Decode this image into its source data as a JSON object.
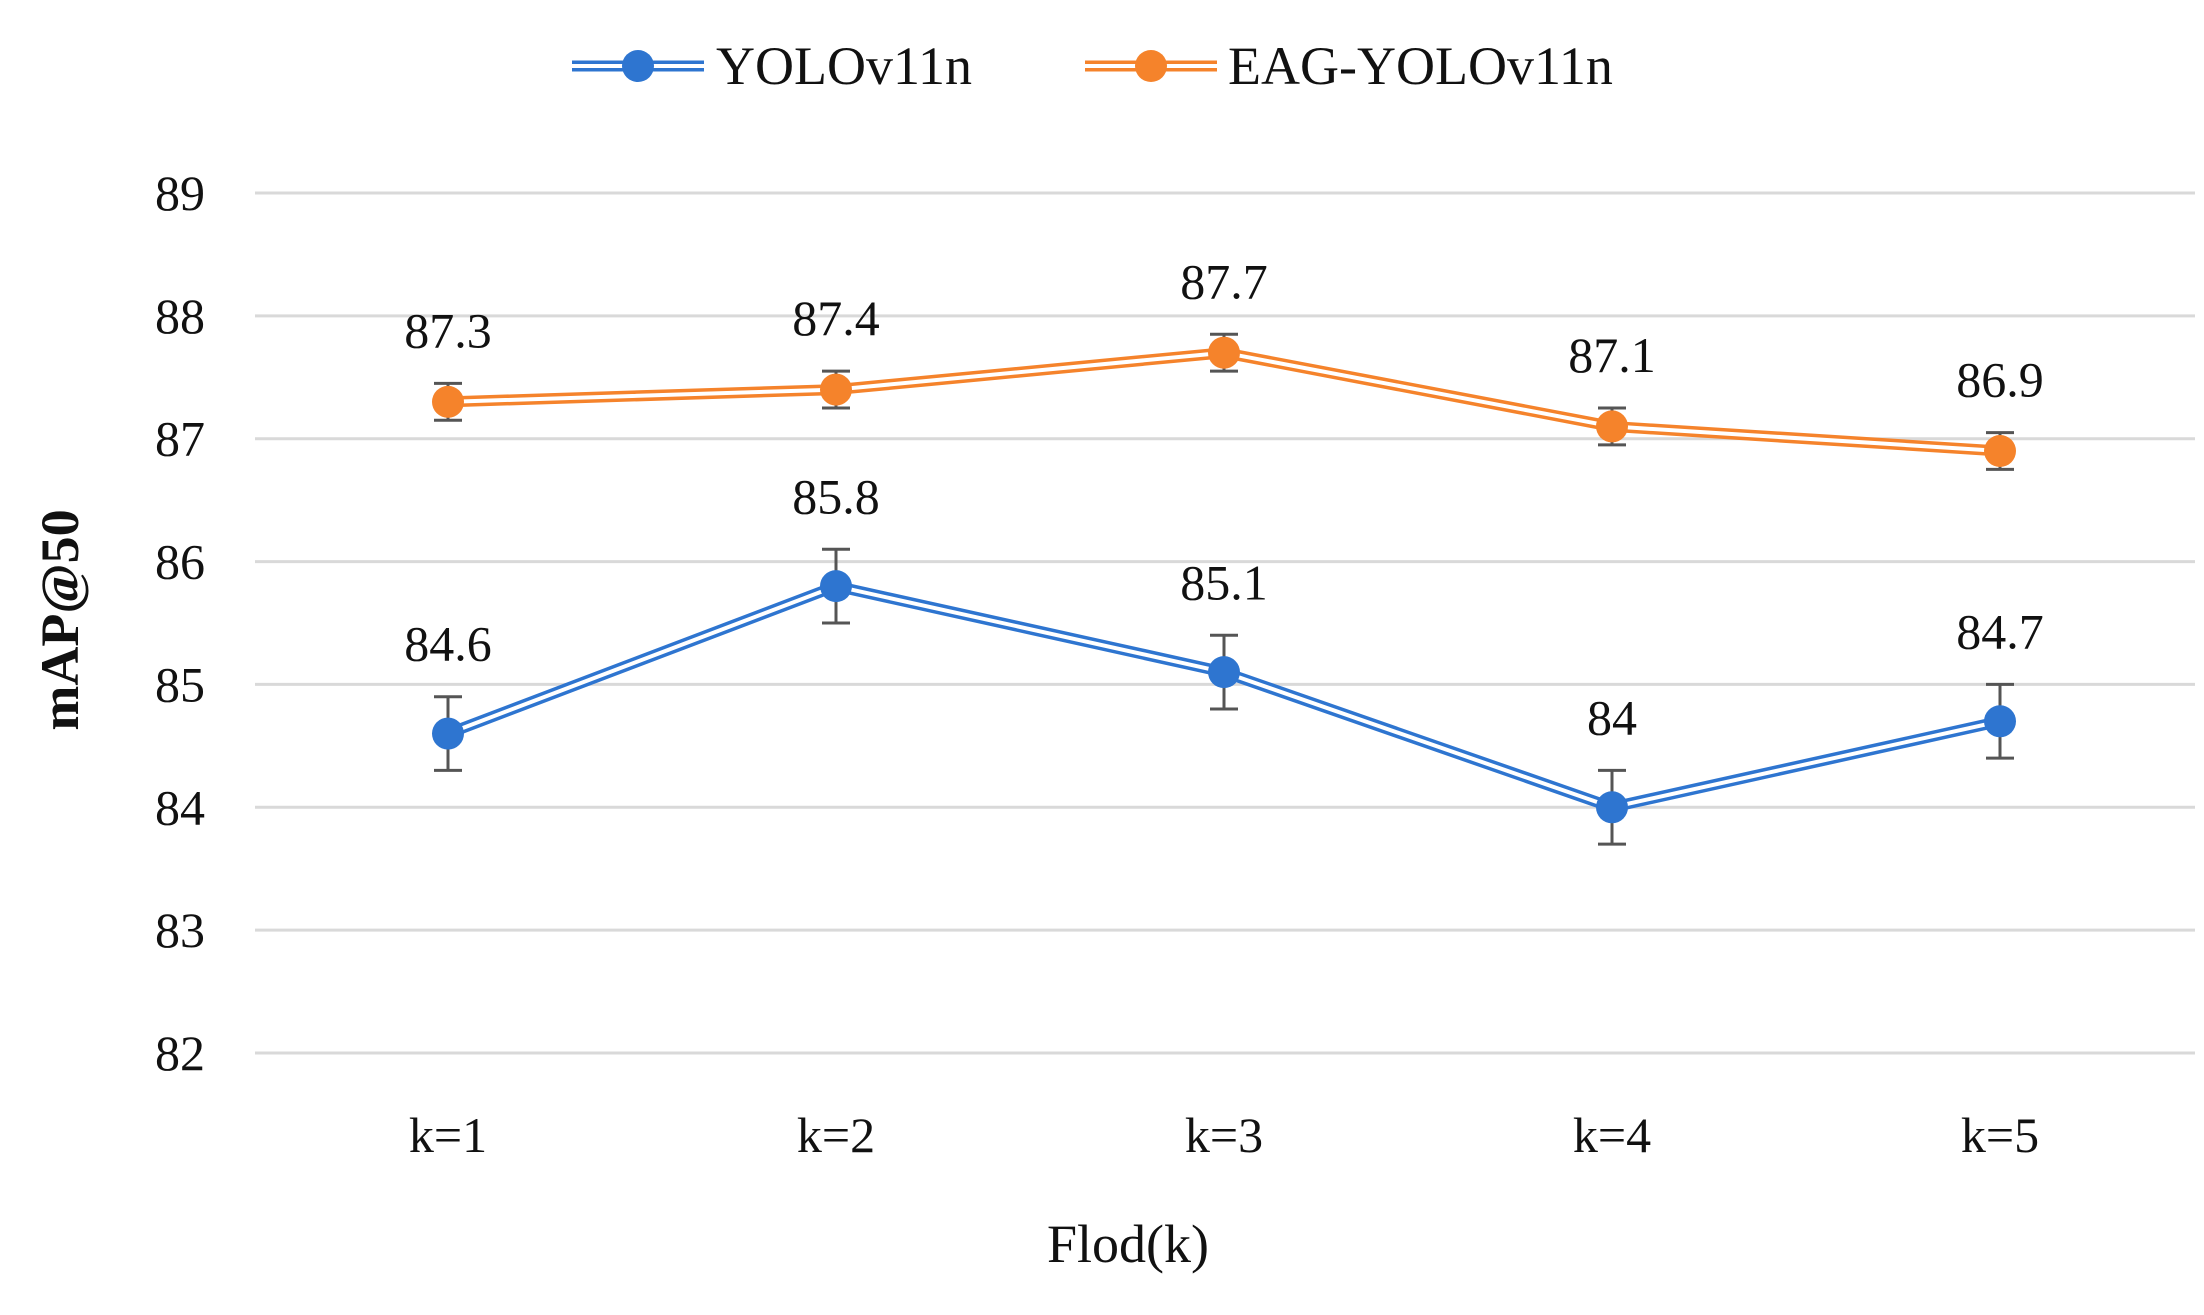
{
  "chart_data": {
    "type": "line",
    "title": "",
    "xlabel": "Flod(k)",
    "ylabel": "mAP@50",
    "categories": [
      "k=1",
      "k=2",
      "k=3",
      "k=4",
      "k=5"
    ],
    "ylim": [
      82,
      89
    ],
    "yticks": [
      82,
      83,
      84,
      85,
      86,
      87,
      88,
      89
    ],
    "grid": true,
    "legend_position": "top-center",
    "series": [
      {
        "name": "YOLOv11n",
        "color": "#2E75D0",
        "values": [
          84.6,
          85.8,
          85.1,
          84,
          84.7
        ],
        "labels": [
          "84.6",
          "85.8",
          "85.1",
          "84",
          "84.7"
        ],
        "error": [
          0.3,
          0.3,
          0.3,
          0.3,
          0.3
        ]
      },
      {
        "name": "EAG-YOLOv11n",
        "color": "#F5832B",
        "values": [
          87.3,
          87.4,
          87.7,
          87.1,
          86.9
        ],
        "labels": [
          "87.3",
          "87.4",
          "87.7",
          "87.1",
          "86.9"
        ],
        "error": [
          0.15,
          0.15,
          0.15,
          0.15,
          0.15
        ]
      }
    ],
    "colors": {
      "grid": "#D9D9D9",
      "error_bar": "#555555"
    }
  }
}
